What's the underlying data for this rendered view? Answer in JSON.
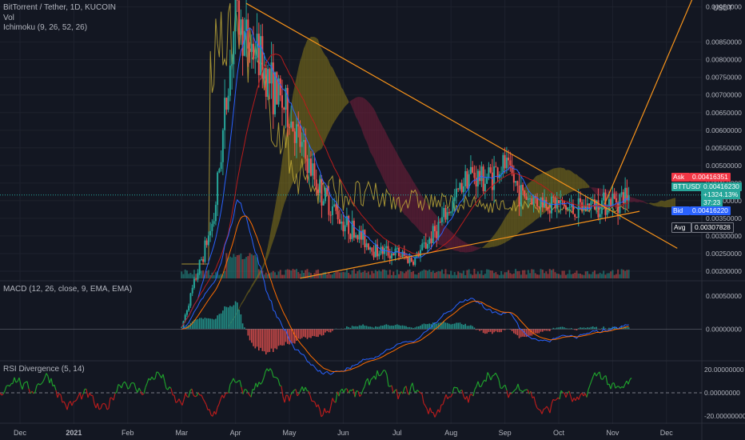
{
  "header": {
    "symbol_line": "BitTorrent / Tether, 1D, KUCOIN",
    "vol_label": "Vol",
    "ichimoku_label": "Ichimoku (9, 26, 52, 26)",
    "currency_label": "USDT"
  },
  "macd_label": "MACD (12, 26, close, 9, EMA, EMA)",
  "rsi_label": "RSI Divergence (5, 14)",
  "price_tags": {
    "ask": {
      "key": "Ask",
      "value": "0.00416351"
    },
    "last": {
      "key": "BTTUSDT",
      "value": "0.00416230",
      "change": "+1324.13%",
      "countdown": "37:23"
    },
    "bid": {
      "key": "Bid",
      "value": "0.00416220"
    },
    "avg": {
      "key": "Avg",
      "value": "0.00307828"
    }
  },
  "colors": {
    "background": "#131722",
    "up": "#26a69a",
    "down": "#ef5350",
    "trendline": "#f7931a",
    "vol_line": "#c9b23a",
    "macd_line": "#2962ff",
    "signal_line": "#ff6d00",
    "rsi_up": "#1f9e2c",
    "rsi_down": "#b71c1c",
    "cloud_bear": "#7a1f3d",
    "cloud_bull": "#8a7a1a",
    "ask_tag": "#f23645",
    "last_tag": "#26a69a",
    "bid_tag": "#2962ff",
    "avg_tag": "#131722"
  },
  "chart_data": [
    {
      "type": "candlestick",
      "title": "BitTorrent / Tether, 1D, KUCOIN",
      "ylabel": "USDT",
      "x_tick_labels": [
        "Dec",
        "2021",
        "Feb",
        "Mar",
        "Apr",
        "May",
        "Jun",
        "Jul",
        "Aug",
        "Sep",
        "Oct",
        "Nov",
        "Dec"
      ],
      "y_tick_labels": [
        "0.00950000",
        "0.00850000",
        "0.00800000",
        "0.00750000",
        "0.00700000",
        "0.00650000",
        "0.00600000",
        "0.00550000",
        "0.00500000",
        "0.00450000",
        "0.00400000",
        "0.00350000",
        "0.00300000",
        "0.00250000",
        "0.00200000"
      ],
      "y_ticks": [
        0.0095,
        0.0085,
        0.008,
        0.0075,
        0.007,
        0.0065,
        0.006,
        0.0055,
        0.005,
        0.0045,
        0.004,
        0.0035,
        0.003,
        0.0025,
        0.002
      ],
      "ylim": [
        0.00175,
        0.00965
      ],
      "price_path_months": [
        3.0,
        3.3,
        3.6,
        4.0,
        4.2,
        4.4,
        4.7,
        5.0,
        5.3,
        5.6,
        6.0,
        6.3,
        6.6,
        7.0,
        7.3,
        7.6,
        8.0,
        8.3,
        8.6,
        9.0,
        9.3,
        9.6,
        10.0,
        10.3,
        10.6,
        11.0,
        11.3
      ],
      "price_path_values": [
        0.0004,
        0.002,
        0.0035,
        0.0093,
        0.0085,
        0.0082,
        0.0072,
        0.0064,
        0.0052,
        0.0042,
        0.0034,
        0.003,
        0.0026,
        0.0025,
        0.0023,
        0.0029,
        0.0038,
        0.0048,
        0.0046,
        0.005,
        0.0042,
        0.004,
        0.0039,
        0.0037,
        0.0039,
        0.004,
        0.0041623
      ],
      "trendlines": [
        {
          "name": "descending resistance",
          "from": [
            4.2,
            0.0096
          ],
          "to": [
            12.2,
            0.00265
          ]
        },
        {
          "name": "ascending support",
          "from": [
            5.2,
            0.0018
          ],
          "to": [
            11.5,
            0.0037
          ]
        },
        {
          "name": "breakout projection",
          "from": [
            10.85,
            0.0039
          ],
          "to": [
            12.5,
            0.0098
          ]
        }
      ],
      "current_price": 0.0041623,
      "average_price": 0.00307828
    },
    {
      "type": "bar",
      "title": "MACD (12, 26, close, 9, EMA, EMA)",
      "y_tick_labels": [
        "0.00050000",
        "0.00000000"
      ],
      "y_ticks": [
        0.0005,
        0.0
      ],
      "ylim": [
        -0.00047,
        0.00072
      ],
      "series": [
        "MACD",
        "Signal",
        "Histogram"
      ]
    },
    {
      "type": "line",
      "title": "RSI Divergence (5, 14)",
      "y_tick_labels": [
        "20.00000000",
        "0.00000000",
        "-20.00000000"
      ],
      "y_ticks": [
        20,
        0,
        -20
      ],
      "ylim": [
        -27,
        27
      ]
    }
  ]
}
